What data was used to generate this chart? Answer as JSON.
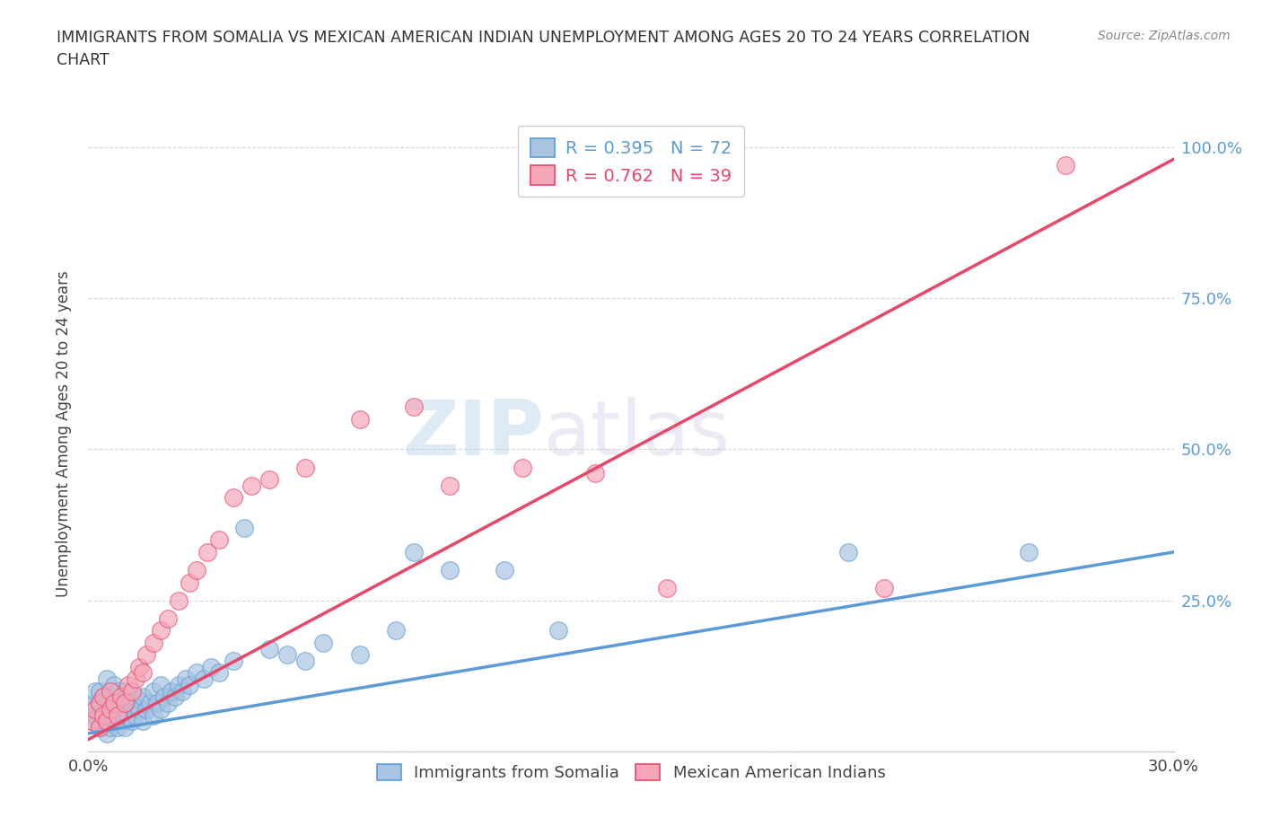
{
  "title": "IMMIGRANTS FROM SOMALIA VS MEXICAN AMERICAN INDIAN UNEMPLOYMENT AMONG AGES 20 TO 24 YEARS CORRELATION\nCHART",
  "source_text": "Source: ZipAtlas.com",
  "ylabel": "Unemployment Among Ages 20 to 24 years",
  "xlim": [
    0.0,
    0.3
  ],
  "ylim": [
    0.0,
    1.05
  ],
  "x_ticks": [
    0.0,
    0.05,
    0.1,
    0.15,
    0.2,
    0.25,
    0.3
  ],
  "x_tick_labels": [
    "0.0%",
    "",
    "",
    "",
    "",
    "",
    "30.0%"
  ],
  "y_ticks": [
    0.0,
    0.25,
    0.5,
    0.75,
    1.0
  ],
  "y_tick_labels": [
    "",
    "25.0%",
    "50.0%",
    "75.0%",
    "100.0%"
  ],
  "somalia_color": "#a8c4e0",
  "somalia_line_color": "#5b9bd5",
  "mexican_color": "#f4a7b9",
  "mexican_line_color": "#e8476a",
  "R_somalia": 0.395,
  "N_somalia": 72,
  "R_mexican": 0.762,
  "N_mexican": 39,
  "watermark_zip": "ZIP",
  "watermark_atlas": "atlas",
  "somalia_x": [
    0.001,
    0.001,
    0.002,
    0.002,
    0.002,
    0.003,
    0.003,
    0.003,
    0.003,
    0.004,
    0.004,
    0.004,
    0.005,
    0.005,
    0.005,
    0.005,
    0.006,
    0.006,
    0.006,
    0.007,
    0.007,
    0.007,
    0.008,
    0.008,
    0.008,
    0.009,
    0.009,
    0.01,
    0.01,
    0.01,
    0.011,
    0.011,
    0.012,
    0.012,
    0.013,
    0.013,
    0.014,
    0.015,
    0.015,
    0.016,
    0.017,
    0.018,
    0.018,
    0.019,
    0.02,
    0.02,
    0.021,
    0.022,
    0.023,
    0.024,
    0.025,
    0.026,
    0.027,
    0.028,
    0.03,
    0.032,
    0.034,
    0.036,
    0.04,
    0.043,
    0.05,
    0.055,
    0.06,
    0.065,
    0.075,
    0.085,
    0.09,
    0.1,
    0.115,
    0.13,
    0.21,
    0.26
  ],
  "somalia_y": [
    0.07,
    0.05,
    0.06,
    0.08,
    0.1,
    0.04,
    0.06,
    0.08,
    0.1,
    0.05,
    0.07,
    0.09,
    0.03,
    0.05,
    0.07,
    0.12,
    0.04,
    0.06,
    0.09,
    0.05,
    0.08,
    0.11,
    0.04,
    0.07,
    0.1,
    0.05,
    0.08,
    0.04,
    0.07,
    0.1,
    0.06,
    0.09,
    0.05,
    0.08,
    0.06,
    0.09,
    0.07,
    0.05,
    0.09,
    0.07,
    0.08,
    0.06,
    0.1,
    0.08,
    0.07,
    0.11,
    0.09,
    0.08,
    0.1,
    0.09,
    0.11,
    0.1,
    0.12,
    0.11,
    0.13,
    0.12,
    0.14,
    0.13,
    0.15,
    0.37,
    0.17,
    0.16,
    0.15,
    0.18,
    0.16,
    0.2,
    0.33,
    0.3,
    0.3,
    0.2,
    0.33,
    0.33
  ],
  "mexican_x": [
    0.001,
    0.002,
    0.003,
    0.003,
    0.004,
    0.004,
    0.005,
    0.006,
    0.006,
    0.007,
    0.008,
    0.009,
    0.01,
    0.011,
    0.012,
    0.013,
    0.014,
    0.015,
    0.016,
    0.018,
    0.02,
    0.022,
    0.025,
    0.028,
    0.03,
    0.033,
    0.036,
    0.04,
    0.045,
    0.05,
    0.06,
    0.075,
    0.09,
    0.1,
    0.12,
    0.14,
    0.16,
    0.22,
    0.27
  ],
  "mexican_y": [
    0.05,
    0.07,
    0.04,
    0.08,
    0.06,
    0.09,
    0.05,
    0.07,
    0.1,
    0.08,
    0.06,
    0.09,
    0.08,
    0.11,
    0.1,
    0.12,
    0.14,
    0.13,
    0.16,
    0.18,
    0.2,
    0.22,
    0.25,
    0.28,
    0.3,
    0.33,
    0.35,
    0.42,
    0.44,
    0.45,
    0.47,
    0.55,
    0.57,
    0.44,
    0.47,
    0.46,
    0.27,
    0.27,
    0.97
  ],
  "blue_line_x0": 0.0,
  "blue_line_y0": 0.03,
  "blue_line_x1": 0.3,
  "blue_line_y1": 0.33,
  "pink_line_x0": 0.0,
  "pink_line_y0": 0.02,
  "pink_line_x1": 0.3,
  "pink_line_y1": 0.98
}
